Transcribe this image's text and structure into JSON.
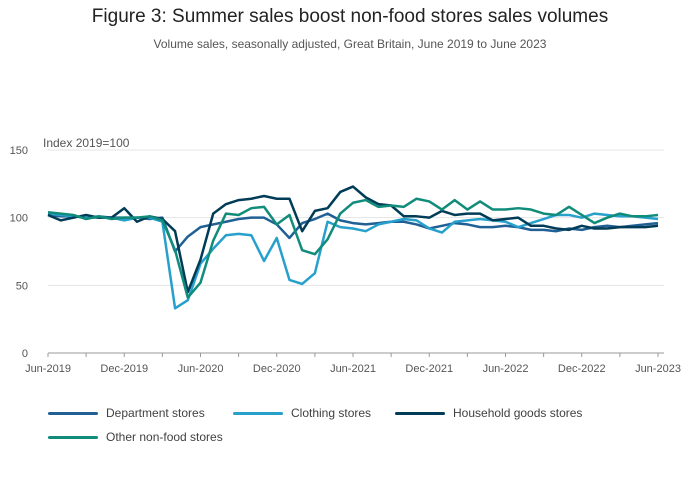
{
  "chart_data": {
    "type": "line",
    "title": "Figure 3: Summer sales boost non-food stores sales volumes",
    "subtitle": "Volume sales, seasonally adjusted, Great Britain, June 2019 to June 2023",
    "ylabel": "Index 2019=100",
    "xlabel": "",
    "ylim": [
      0,
      150
    ],
    "yticks": [
      0,
      50,
      100,
      150
    ],
    "xticks": [
      "Jun-2019",
      "Dec-2019",
      "Jun-2020",
      "Dec-2020",
      "Jun-2021",
      "Dec-2021",
      "Jun-2022",
      "Dec-2022",
      "Jun-2023"
    ],
    "x_months": [
      "2019-06",
      "2019-07",
      "2019-08",
      "2019-09",
      "2019-10",
      "2019-11",
      "2019-12",
      "2020-01",
      "2020-02",
      "2020-03",
      "2020-04",
      "2020-05",
      "2020-06",
      "2020-07",
      "2020-08",
      "2020-09",
      "2020-10",
      "2020-11",
      "2020-12",
      "2021-01",
      "2021-02",
      "2021-03",
      "2021-04",
      "2021-05",
      "2021-06",
      "2021-07",
      "2021-08",
      "2021-09",
      "2021-10",
      "2021-11",
      "2021-12",
      "2022-01",
      "2022-02",
      "2022-03",
      "2022-04",
      "2022-05",
      "2022-06",
      "2022-07",
      "2022-08",
      "2022-09",
      "2022-10",
      "2022-11",
      "2022-12",
      "2023-01",
      "2023-02",
      "2023-03",
      "2023-04",
      "2023-05",
      "2023-06"
    ],
    "series": [
      {
        "name": "Department stores",
        "color": "#206095",
        "values": [
          102,
          101,
          101,
          100,
          101,
          100,
          100,
          100,
          99,
          100,
          75,
          86,
          93,
          95,
          97,
          99,
          100,
          100,
          95,
          85,
          96,
          99,
          103,
          98,
          96,
          95,
          96,
          97,
          97,
          95,
          92,
          94,
          96,
          95,
          93,
          93,
          94,
          93,
          91,
          91,
          90,
          92,
          91,
          93,
          94,
          93,
          94,
          95,
          96
        ]
      },
      {
        "name": "Clothing stores",
        "color": "#27a0cc",
        "values": [
          103,
          102,
          101,
          100,
          100,
          100,
          98,
          100,
          100,
          97,
          33,
          39,
          66,
          77,
          87,
          88,
          87,
          68,
          85,
          54,
          51,
          59,
          97,
          93,
          92,
          90,
          95,
          97,
          99,
          98,
          92,
          89,
          97,
          98,
          99,
          98,
          97,
          93,
          96,
          99,
          102,
          102,
          100,
          103,
          102,
          101,
          101,
          100,
          99
        ]
      },
      {
        "name": "Household goods stores",
        "color": "#003c57",
        "values": [
          102,
          98,
          100,
          102,
          100,
          100,
          107,
          97,
          101,
          99,
          90,
          45,
          69,
          103,
          110,
          113,
          114,
          116,
          114,
          114,
          90,
          105,
          107,
          119,
          123,
          115,
          110,
          109,
          101,
          101,
          100,
          105,
          102,
          103,
          103,
          98,
          99,
          100,
          94,
          94,
          92,
          91,
          94,
          92,
          92,
          93,
          93,
          93,
          94
        ]
      },
      {
        "name": "Other non-food stores",
        "color": "#118c7b",
        "values": [
          104,
          103,
          102,
          99,
          101,
          99,
          100,
          100,
          101,
          98,
          76,
          41,
          52,
          83,
          103,
          102,
          107,
          108,
          95,
          102,
          76,
          73,
          84,
          103,
          111,
          113,
          108,
          109,
          108,
          114,
          112,
          106,
          113,
          106,
          112,
          106,
          106,
          107,
          106,
          103,
          102,
          108,
          102,
          96,
          100,
          103,
          101,
          101,
          102
        ]
      }
    ]
  }
}
